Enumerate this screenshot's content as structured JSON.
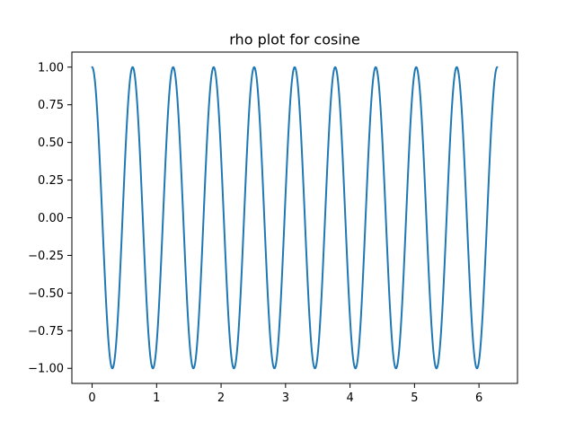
{
  "chart_data": {
    "type": "line",
    "title": "rho plot for cosine",
    "xlabel": "",
    "ylabel": "",
    "function": "cos(10x)",
    "x_range": [
      0,
      6.283185307
    ],
    "xlim": [
      -0.314159,
      6.597345
    ],
    "ylim": [
      -1.1,
      1.1
    ],
    "x_ticks": [
      0,
      1,
      2,
      3,
      4,
      5,
      6
    ],
    "x_tick_labels": [
      "0",
      "1",
      "2",
      "3",
      "4",
      "5",
      "6"
    ],
    "y_ticks": [
      -1.0,
      -0.75,
      -0.5,
      -0.25,
      0.0,
      0.25,
      0.5,
      0.75,
      1.0
    ],
    "y_tick_labels": [
      "−1.00",
      "−0.75",
      "−0.50",
      "−0.25",
      "0.00",
      "0.25",
      "0.50",
      "0.75",
      "1.00"
    ],
    "grid": false,
    "legend": "none",
    "series": [
      {
        "color": "#1f77b4",
        "samples": 1000
      }
    ]
  }
}
